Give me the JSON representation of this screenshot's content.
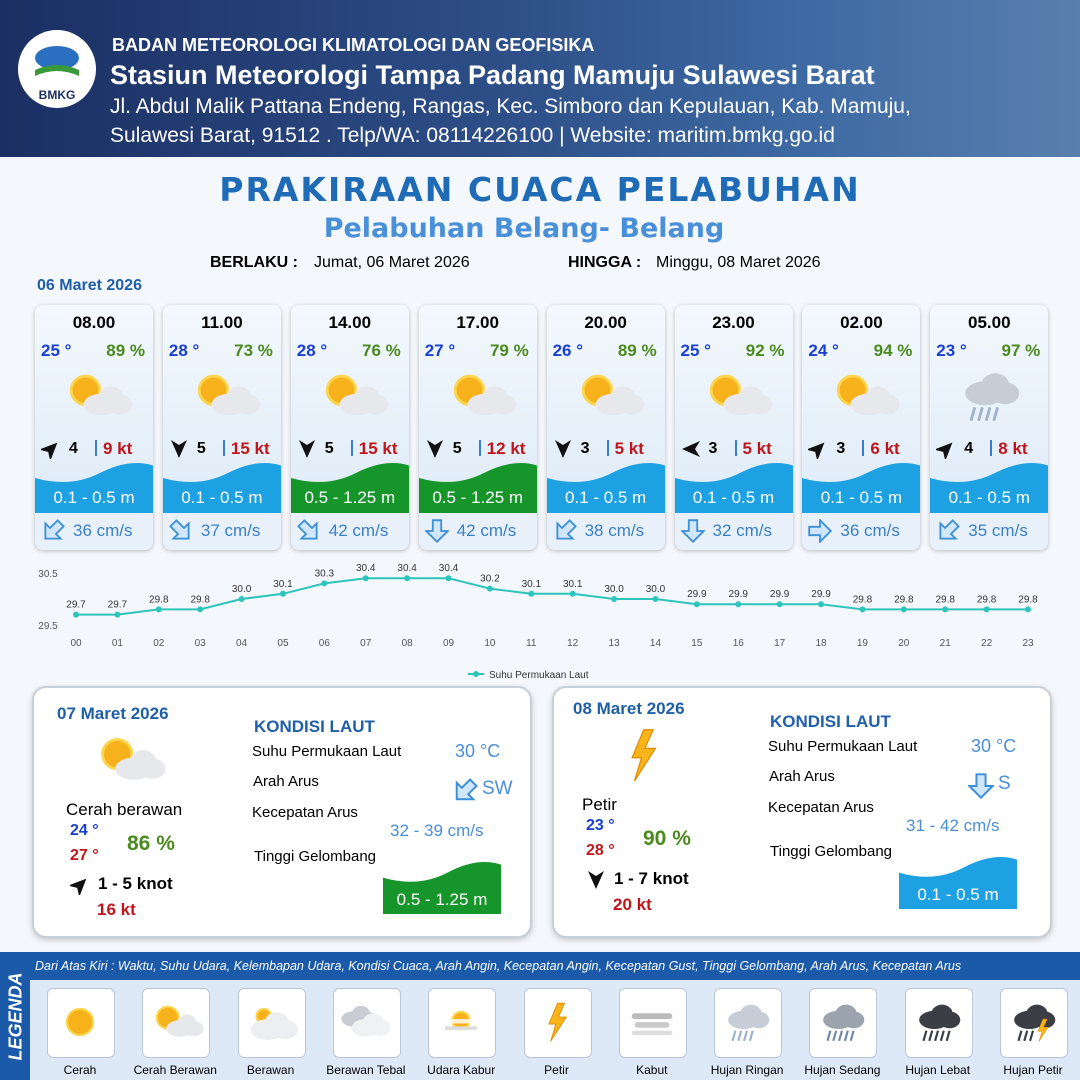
{
  "header": {
    "logo": "BMKG",
    "agency": "BADAN METEOROLOGI KLIMATOLOGI DAN GEOFISIKA",
    "station": "Stasiun Meteorologi Tampa Padang Mamuju Sulawesi Barat",
    "address_1": "Jl. Abdul Malik Pattana Endeng, Rangas, Kec. Simboro dan Kepulauan, Kab. Mamuju,",
    "address_2": "Sulawesi Barat, 91512 . Telp/WA: 08114226100 | Website: maritim.bmkg.go.id"
  },
  "title": "PRAKIRAAN CUACA PELABUHAN",
  "subtitle": "Pelabuhan Belang- Belang",
  "validity": {
    "from_label": "BERLAKU :",
    "from": "Jumat, 06 Maret 2026",
    "to_label": "HINGGA :",
    "to": "Minggu, 08 Maret 2026"
  },
  "day_label": "06 Maret 2026",
  "slots": [
    {
      "time": "08.00",
      "temp": "25 °",
      "humidity": "89 %",
      "weather": "Cerah Berawan",
      "wind_dir": 45,
      "wind": "4",
      "gust": "9 kt",
      "wave": "0.1 - 0.5 m",
      "wave_color": "#1da1e2",
      "current_dir": 225,
      "current": "36 cm/s"
    },
    {
      "time": "11.00",
      "temp": "28 °",
      "humidity": "73 %",
      "weather": "Cerah Berawan",
      "wind_dir": 180,
      "wind": "5",
      "gust": "15 kt",
      "wave": "0.1 - 0.5 m",
      "wave_color": "#1da1e2",
      "current_dir": 135,
      "current": "37 cm/s"
    },
    {
      "time": "14.00",
      "temp": "28 °",
      "humidity": "76 %",
      "weather": "Cerah Berawan",
      "wind_dir": 180,
      "wind": "5",
      "gust": "15 kt",
      "wave": "0.5 - 1.25 m",
      "wave_color": "#16962a",
      "current_dir": 135,
      "current": "42 cm/s"
    },
    {
      "time": "17.00",
      "temp": "27 °",
      "humidity": "79 %",
      "weather": "Cerah Berawan",
      "wind_dir": 180,
      "wind": "5",
      "gust": "12 kt",
      "wave": "0.5 - 1.25 m",
      "wave_color": "#16962a",
      "current_dir": 180,
      "current": "42 cm/s"
    },
    {
      "time": "20.00",
      "temp": "26 °",
      "humidity": "89 %",
      "weather": "Cerah Berawan",
      "wind_dir": 180,
      "wind": "3",
      "gust": "5 kt",
      "wave": "0.1 - 0.5 m",
      "wave_color": "#1da1e2",
      "current_dir": 225,
      "current": "38 cm/s"
    },
    {
      "time": "23.00",
      "temp": "25 °",
      "humidity": "92 %",
      "weather": "Cerah Berawan",
      "wind_dir": 270,
      "wind": "3",
      "gust": "5 kt",
      "wave": "0.1 - 0.5 m",
      "wave_color": "#1da1e2",
      "current_dir": 180,
      "current": "32 cm/s"
    },
    {
      "time": "02.00",
      "temp": "24 °",
      "humidity": "94 %",
      "weather": "Cerah Berawan",
      "wind_dir": 45,
      "wind": "3",
      "gust": "6 kt",
      "wave": "0.1 - 0.5 m",
      "wave_color": "#1da1e2",
      "current_dir": 90,
      "current": "36 cm/s"
    },
    {
      "time": "05.00",
      "temp": "23 °",
      "humidity": "97 %",
      "weather": "Hujan Ringan",
      "wind_dir": 45,
      "wind": "4",
      "gust": "8 kt",
      "wave": "0.1 - 0.5 m",
      "wave_color": "#1da1e2",
      "current_dir": 225,
      "current": "35 cm/s"
    }
  ],
  "chart_data": {
    "type": "line",
    "categories": [
      "00",
      "01",
      "02",
      "03",
      "04",
      "05",
      "06",
      "07",
      "08",
      "09",
      "10",
      "11",
      "12",
      "13",
      "14",
      "15",
      "16",
      "17",
      "18",
      "19",
      "20",
      "21",
      "22",
      "23"
    ],
    "series": [
      {
        "name": "Suhu Permukaan Laut",
        "color": "#2cc4bb",
        "values": [
          29.7,
          29.7,
          29.8,
          29.8,
          30.0,
          30.1,
          30.3,
          30.4,
          30.4,
          30.4,
          30.2,
          30.1,
          30.1,
          30.0,
          30.0,
          29.9,
          29.9,
          29.9,
          29.9,
          29.8,
          29.8,
          29.8,
          29.8,
          29.8
        ],
        "value_labels": [
          "29.7",
          "29.7",
          "29.8",
          "29.8",
          "30.0",
          "30.1",
          "30.3",
          "30.4",
          "30.4",
          "30.4",
          "30.2",
          "30.1",
          "30.1",
          "30.0",
          "30.0",
          "29.9",
          "29.9",
          "29.9",
          "29.9",
          "29.8",
          "29.8",
          "29.8",
          "29.8",
          "29.8"
        ]
      }
    ],
    "ylim": [
      29.5,
      30.5
    ],
    "yticks": [
      29.5,
      30.5
    ],
    "legend": "bottom"
  },
  "days": [
    {
      "date": "07 Maret 2026",
      "weather": "Cerah Berawan",
      "condition": "Cerah berawan",
      "temp_min": "24 °",
      "temp_max": "27 °",
      "humidity": "86 %",
      "wind_dir": 45,
      "wind": "1 - 5 knot",
      "gust": "16 kt",
      "sea_title": "KONDISI LAUT",
      "sst_label": "Suhu Permukaan Laut",
      "sst": "30 °C",
      "current_dir_label": "Arah Arus",
      "current_dir": 225,
      "current_dir_value": "SW",
      "current_speed_label": "Kecepatan Arus",
      "current_speed": "32  - 39 cm/s",
      "wave_label": "Tinggi Gelombang",
      "wave": "0.5 - 1.25 m",
      "wave_color": "#16962a"
    },
    {
      "date": "08 Maret 2026",
      "weather": "Petir",
      "condition": "Petir",
      "temp_min": "23 °",
      "temp_max": "28 °",
      "humidity": "90 %",
      "wind_dir": 180,
      "wind": "1 - 7 knot",
      "gust": "20 kt",
      "sea_title": "KONDISI LAUT",
      "sst_label": "Suhu Permukaan Laut",
      "sst": "30 °C",
      "current_dir_label": "Arah Arus",
      "current_dir": 180,
      "current_dir_value": "S",
      "current_speed_label": "Kecepatan Arus",
      "current_speed": "31  - 42 cm/s",
      "wave_label": "Tinggi Gelombang",
      "wave": "0.1 - 0.5 m",
      "wave_color": "#1da1e2"
    }
  ],
  "legend": {
    "title": "LEGENDA",
    "note": "Dari Atas Kiri : Waktu, Suhu Udara, Kelembapan Udara, Kondisi Cuaca, Arah Angin, Kecepatan Angin, Kecepatan Gust, Tinggi Gelombang, Arah Arus, Kecepatan Arus",
    "items": [
      "Cerah",
      "Cerah Berawan",
      "Berawan",
      "Berawan Tebal",
      "Udara Kabur",
      "Petir",
      "Kabut",
      "Hujan Ringan",
      "Hujan Sedang",
      "Hujan Lebat",
      "Hujan Petir"
    ]
  }
}
